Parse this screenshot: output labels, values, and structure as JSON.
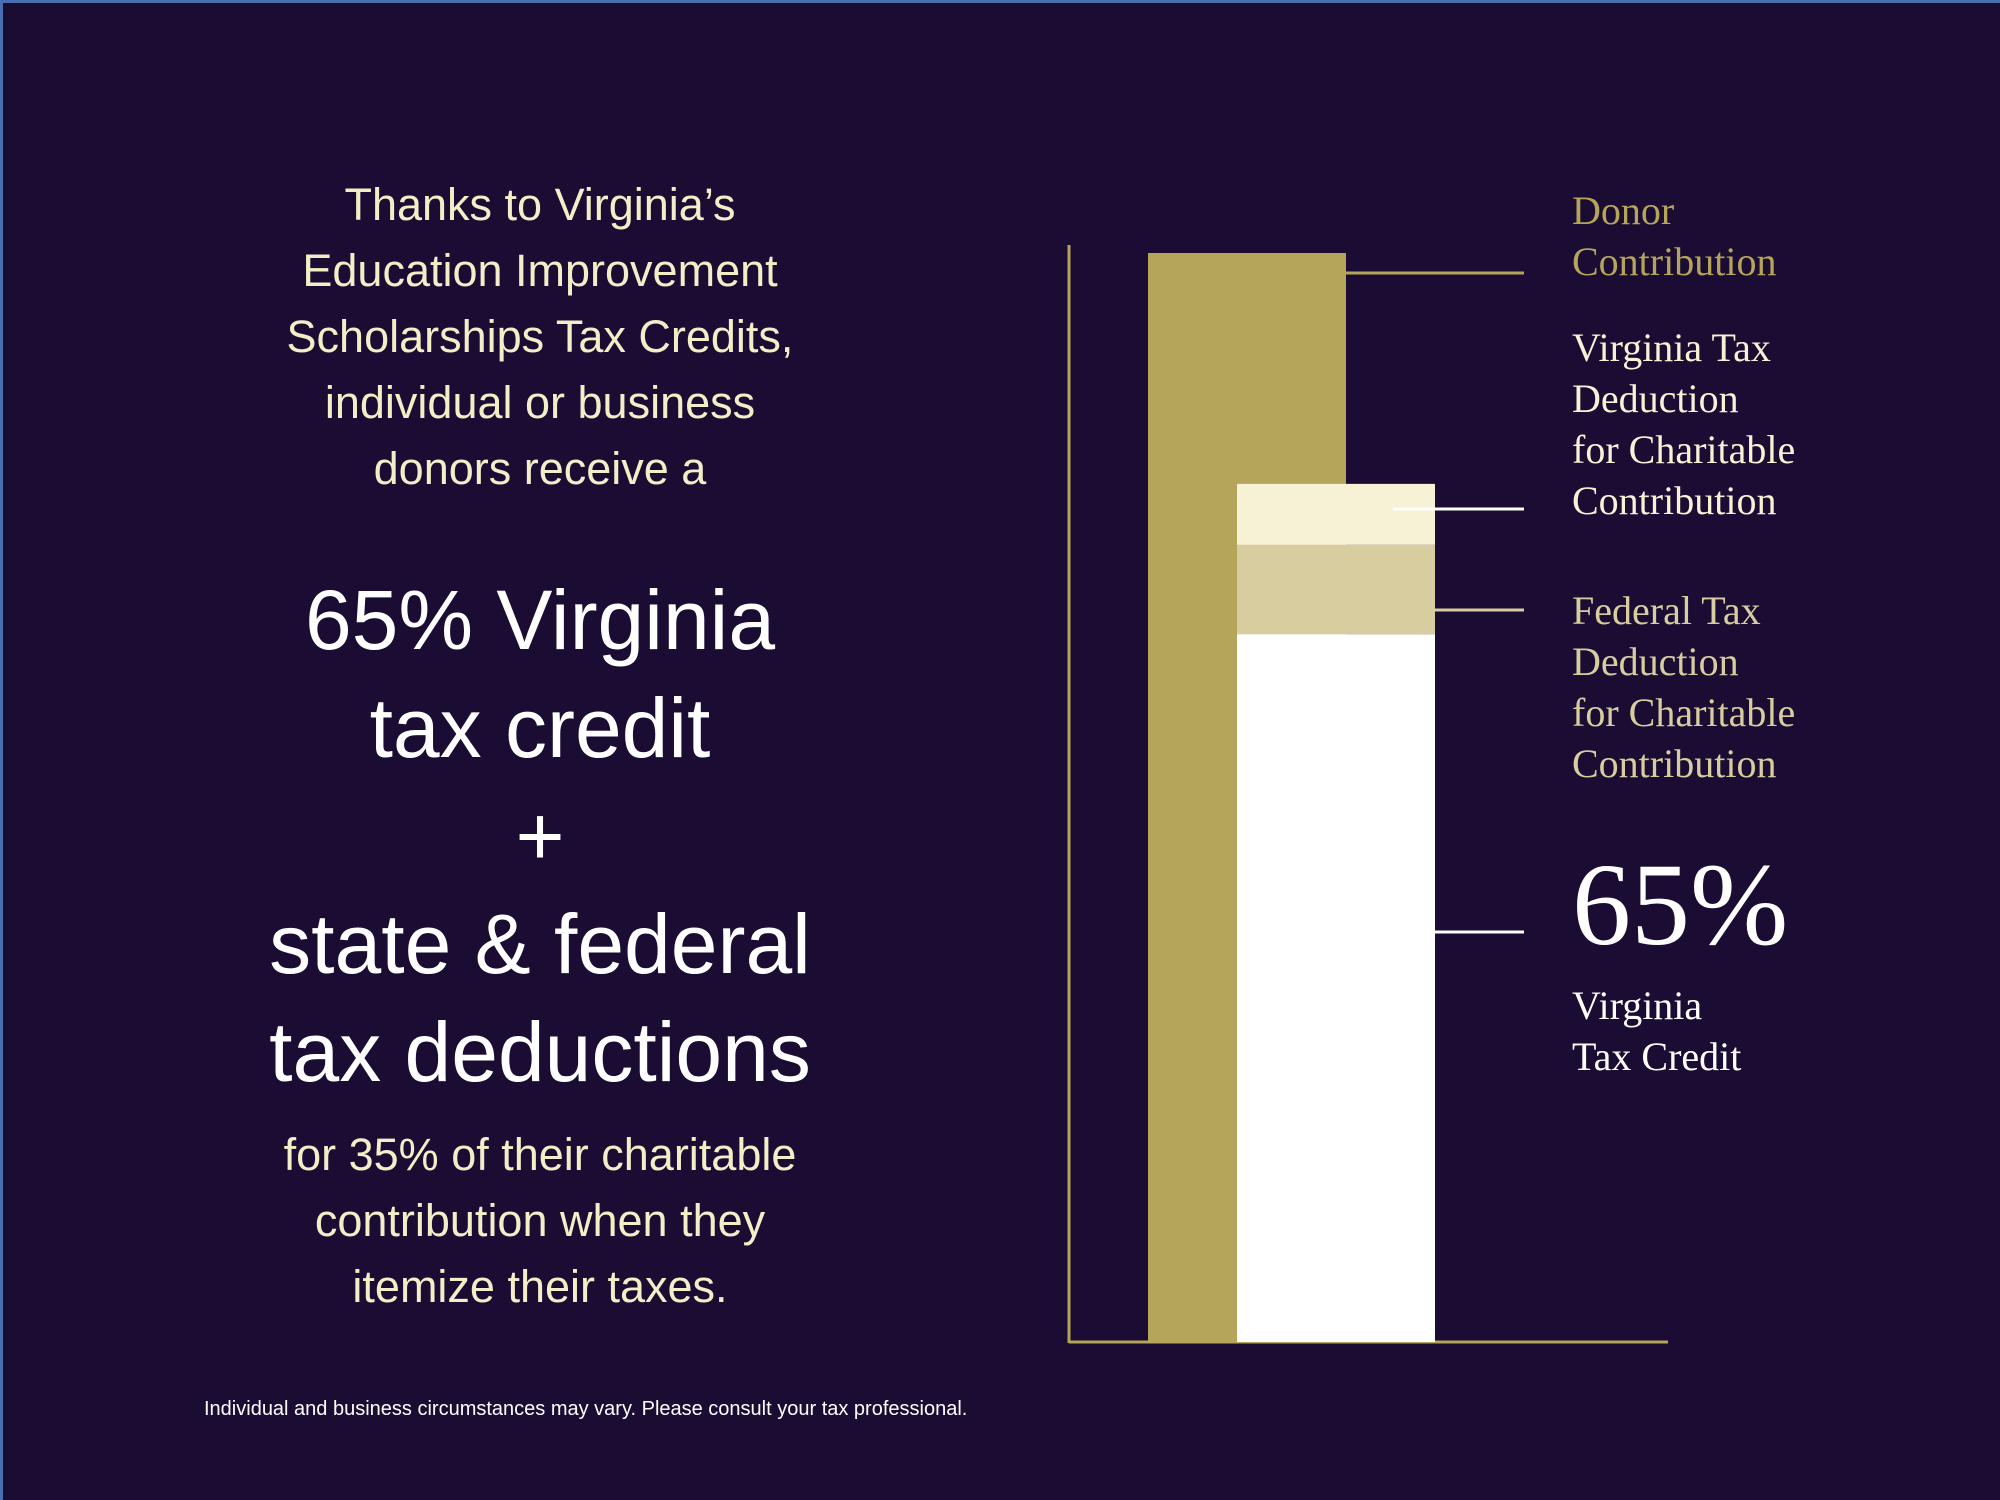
{
  "text": {
    "intro": "Thanks to Virginia’s\nEducation Improvement\nScholarships Tax Credits,\nindividual or business\ndonors receive a",
    "headline": "65% Virginia\ntax credit\n+\nstate & federal\ntax deductions",
    "detail": "for 35% of their charitable\ncontribution when they\nitemize their taxes.",
    "footnote": "Individual and business circumstances may vary. Please consult your tax professional."
  },
  "chart_data": {
    "type": "stacked-bar",
    "categories": [
      null,
      null
    ],
    "ylim": [
      0,
      100
    ],
    "series": [
      {
        "name": "Donor\nContribution",
        "color": "#b5a55a",
        "values": [
          100,
          null
        ]
      },
      {
        "name": "Virginia\nTax Credit",
        "color": "#ffffff",
        "values": [
          null,
          65
        ],
        "value_labels": [
          null,
          "65%"
        ]
      },
      {
        "name": "Federal Tax\nDeduction\nfor Charitable\nContribution",
        "color": "#d8cd9e",
        "values": [
          null,
          8.2
        ]
      },
      {
        "name": "Virginia Tax\nDeduction\nfor Charitable\nContribution",
        "color": "#f7f2d6",
        "values": [
          null,
          5.6
        ]
      }
    ]
  }
}
